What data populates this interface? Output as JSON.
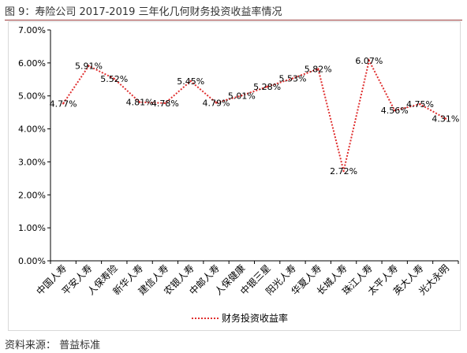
{
  "figure": {
    "title": "图 9：寿险公司 2017-2019 三年化几何财务投资收益率情况",
    "source": "资料来源：  普益标准"
  },
  "colors": {
    "series": "#e03030",
    "axis": "#000000",
    "rule": "#9a3b3b"
  },
  "chart_data": {
    "type": "line",
    "title": "",
    "xlabel": "",
    "ylabel": "",
    "categories": [
      "中国人寿",
      "平安人寿",
      "人保寿险",
      "新华人寿",
      "建信人寿",
      "农银人寿",
      "中邮人寿",
      "人保健康",
      "中银三星",
      "阳光人寿",
      "华夏人寿",
      "长城人寿",
      "珠江人寿",
      "太平人寿",
      "英大人寿",
      "光大永明"
    ],
    "series": [
      {
        "name": "财务投资收益率",
        "values": [
          4.77,
          5.91,
          5.52,
          4.81,
          4.78,
          5.45,
          4.79,
          5.01,
          5.28,
          5.53,
          5.82,
          2.72,
          6.07,
          4.56,
          4.75,
          4.31
        ],
        "labels": [
          "4.77%",
          "5.91%",
          "5.52%",
          "4.81%",
          "4.78%",
          "5.45%",
          "4.79%",
          "5.01%",
          "5.28%",
          "5.53%",
          "5.82%",
          "2.72%",
          "6.07%",
          "4.56%",
          "4.75%",
          "4.31%"
        ]
      }
    ],
    "ylim": [
      0,
      7
    ],
    "y_ticks": [
      "0.00%",
      "1.00%",
      "2.00%",
      "3.00%",
      "4.00%",
      "5.00%",
      "6.00%",
      "7.00%"
    ],
    "line_style": "dotted",
    "grid": false,
    "legend_position": "bottom"
  }
}
